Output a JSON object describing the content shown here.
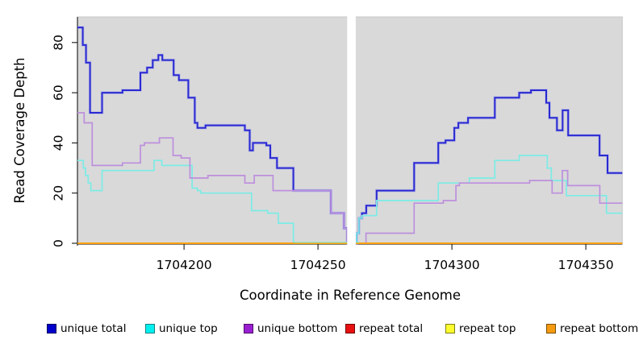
{
  "figure": {
    "background": "#ffffff",
    "panel_background": "#d9d9d9",
    "panel_border": "#c6c6c6",
    "axis_color": "#000000",
    "gap_color": "#ffffff"
  },
  "chart_data": {
    "type": "line",
    "subtype": "step-coverage",
    "title": "",
    "xlabel": "Coordinate in Reference Genome",
    "ylabel": "Read Coverage Depth",
    "xlim": [
      1704160,
      1704364
    ],
    "ylim": [
      0,
      90
    ],
    "grid": "off",
    "legend_position": "bottom",
    "x_ticks": [
      {
        "value": 1704200,
        "label": "1704200"
      },
      {
        "value": 1704250,
        "label": "1704250"
      },
      {
        "value": 1704300,
        "label": "1704300"
      },
      {
        "value": 1704350,
        "label": "1704350"
      }
    ],
    "y_ticks": [
      {
        "value": 0,
        "label": "0"
      },
      {
        "value": 20,
        "label": "20"
      },
      {
        "value": 40,
        "label": "40"
      },
      {
        "value": 60,
        "label": "60"
      },
      {
        "value": 80,
        "label": "80"
      }
    ],
    "coverage_gap": {
      "from": 1704260.9,
      "to": 1704264.1
    },
    "series": [
      {
        "name": "unique total",
        "color": "#2a2ad2",
        "halo": "#9a9af0",
        "width": 2,
        "points": [
          [
            1704160,
            86
          ],
          [
            1704162.2,
            79
          ],
          [
            1704163.4,
            72
          ],
          [
            1704164.9,
            52
          ],
          [
            1704169.4,
            60
          ],
          [
            1704177,
            61
          ],
          [
            1704183.7,
            68
          ],
          [
            1704186.2,
            70
          ],
          [
            1704188.3,
            73
          ],
          [
            1704190.4,
            75
          ],
          [
            1704191.9,
            73
          ],
          [
            1704196.1,
            67
          ],
          [
            1704198.1,
            65
          ],
          [
            1704201.6,
            58
          ],
          [
            1704204,
            48
          ],
          [
            1704205,
            46
          ],
          [
            1704208,
            47
          ],
          [
            1704222.7,
            45
          ],
          [
            1704224.5,
            37
          ],
          [
            1704225.7,
            40
          ],
          [
            1704230.7,
            39
          ],
          [
            1704232.2,
            34
          ],
          [
            1704234.7,
            30
          ],
          [
            1704240.8,
            21
          ],
          [
            1704254.8,
            12
          ],
          [
            1704259.7,
            6
          ],
          [
            1704260.9,
            0
          ],
          [
            1704264.4,
            4
          ],
          [
            1704265.3,
            10
          ],
          [
            1704266.4,
            12
          ],
          [
            1704268,
            15
          ],
          [
            1704271.9,
            21
          ],
          [
            1704285.9,
            32
          ],
          [
            1704294.9,
            40
          ],
          [
            1704297.6,
            41
          ],
          [
            1704300.9,
            46
          ],
          [
            1704302.4,
            48
          ],
          [
            1704306,
            50
          ],
          [
            1704316,
            58
          ],
          [
            1704325.1,
            60
          ],
          [
            1704329.5,
            61
          ],
          [
            1704335.2,
            56
          ],
          [
            1704336.4,
            50
          ],
          [
            1704339.2,
            45
          ],
          [
            1704341.3,
            53
          ],
          [
            1704343.4,
            43
          ],
          [
            1704355.1,
            35
          ],
          [
            1704358.1,
            28
          ]
        ]
      },
      {
        "name": "unique top",
        "color": "#7bece6",
        "width": 1.7,
        "points": [
          [
            1704160,
            33
          ],
          [
            1704162.4,
            30
          ],
          [
            1704163.2,
            27
          ],
          [
            1704164.2,
            24
          ],
          [
            1704165.2,
            21
          ],
          [
            1704169.4,
            29
          ],
          [
            1704188.8,
            33
          ],
          [
            1704191.7,
            31
          ],
          [
            1704203,
            22
          ],
          [
            1704205,
            21
          ],
          [
            1704206.2,
            20
          ],
          [
            1704225.2,
            13
          ],
          [
            1704231.2,
            12
          ],
          [
            1704235.2,
            8
          ],
          [
            1704240.8,
            0
          ],
          [
            1704264.4,
            4
          ],
          [
            1704265.3,
            10
          ],
          [
            1704266.4,
            11
          ],
          [
            1704271.9,
            17
          ],
          [
            1704294.9,
            24
          ],
          [
            1704306.5,
            26
          ],
          [
            1704316,
            33
          ],
          [
            1704325.1,
            35
          ],
          [
            1704335.6,
            30
          ],
          [
            1704337.1,
            25
          ],
          [
            1704342.7,
            19
          ],
          [
            1704357.7,
            12
          ]
        ]
      },
      {
        "name": "unique bottom",
        "color": "#bd8fdd",
        "width": 1.7,
        "points": [
          [
            1704160,
            52
          ],
          [
            1704162.7,
            48
          ],
          [
            1704165.7,
            31
          ],
          [
            1704177,
            32
          ],
          [
            1704183.7,
            39
          ],
          [
            1704185.2,
            40
          ],
          [
            1704190.8,
            42
          ],
          [
            1704195.9,
            35
          ],
          [
            1704198.9,
            34
          ],
          [
            1704202.2,
            26
          ],
          [
            1704208.9,
            27
          ],
          [
            1704222.7,
            24
          ],
          [
            1704226.2,
            27
          ],
          [
            1704233.2,
            21
          ],
          [
            1704254.8,
            12
          ],
          [
            1704259.7,
            6
          ],
          [
            1704260.9,
            0
          ],
          [
            1704267.9,
            4
          ],
          [
            1704285.9,
            16
          ],
          [
            1704296.8,
            17
          ],
          [
            1704301.5,
            23
          ],
          [
            1704302.8,
            24
          ],
          [
            1704329,
            25
          ],
          [
            1704337.4,
            20
          ],
          [
            1704341.2,
            29
          ],
          [
            1704343.2,
            23
          ],
          [
            1704355.2,
            16
          ]
        ]
      },
      {
        "name": "repeat total",
        "color": "#d42a2a",
        "width": 1.7,
        "points": [
          [
            1704160,
            0
          ]
        ]
      },
      {
        "name": "repeat top",
        "color": "#ecec6a",
        "width": 1.7,
        "points": [
          [
            1704160,
            0
          ]
        ]
      },
      {
        "name": "repeat bottom",
        "color": "#ff9d00",
        "width": 1.7,
        "points": [
          [
            1704160,
            0
          ]
        ]
      }
    ]
  },
  "legend": {
    "items": [
      {
        "label": "unique total",
        "fill": "#0000cc",
        "border": "#000060"
      },
      {
        "label": "unique top",
        "fill": "#00f0f0",
        "border": "#1a8080"
      },
      {
        "label": "unique bottom",
        "fill": "#991fd1",
        "border": "#4d0f69"
      },
      {
        "label": "repeat total",
        "fill": "#e81010",
        "border": "#700808"
      },
      {
        "label": "repeat top",
        "fill": "#fdfd2e",
        "border": "#7f7f17"
      },
      {
        "label": "repeat bottom",
        "fill": "#f59b11",
        "border": "#7a4e09"
      }
    ]
  }
}
